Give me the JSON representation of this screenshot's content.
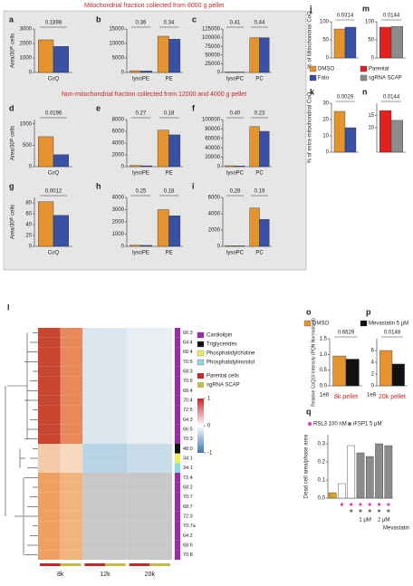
{
  "headers": {
    "mito": "Mitochondrial fraction collected from 8000 g pellet",
    "nonmito": "Non-mitochondrial fraction collected from 12000 and 4000 g pellet"
  },
  "chart_data": [
    {
      "type": "bar",
      "label": "a",
      "ylabel": "Area/30ᵗʰ cells",
      "categories": [
        "CoQ"
      ],
      "series": [
        {
          "color": "#e5932e",
          "values": [
            2250
          ]
        },
        {
          "color": "#3a50a3",
          "values": [
            1800
          ]
        }
      ],
      "ylim": [
        0,
        3000
      ],
      "yticks": [
        0,
        1000,
        2000,
        3000
      ],
      "pvalues": [
        "0.1898"
      ]
    },
    {
      "type": "bar",
      "label": "b",
      "categories": [
        "lysoPE",
        "PE"
      ],
      "series": [
        {
          "color": "#e5932e",
          "values": [
            600,
            12500
          ]
        },
        {
          "color": "#3a50a3",
          "values": [
            500,
            11500
          ]
        }
      ],
      "ylim": [
        0,
        15000
      ],
      "yticks": [
        0,
        5000,
        10000,
        15000
      ],
      "pvalues": [
        "0.36",
        "0.34"
      ]
    },
    {
      "type": "bar",
      "label": "c",
      "categories": [
        "lysoPC",
        "PC"
      ],
      "series": [
        {
          "color": "#e5932e",
          "values": [
            1500,
            100000
          ]
        },
        {
          "color": "#3a50a3",
          "values": [
            1200,
            100000
          ]
        }
      ],
      "ylim": [
        0,
        125000
      ],
      "yticks": [
        0,
        25000,
        50000,
        75000,
        100000,
        125000
      ],
      "pvalues": [
        "0.41",
        "0.44"
      ]
    },
    {
      "type": "bar",
      "label": "d",
      "ylabel": "Area/30ᵗʰ cells",
      "categories": [
        "CoQ"
      ],
      "series": [
        {
          "color": "#e5932e",
          "values": [
            700
          ]
        },
        {
          "color": "#3a50a3",
          "values": [
            280
          ]
        }
      ],
      "ylim": [
        0,
        1100
      ],
      "yticks": [
        0,
        500,
        1000
      ],
      "pvalues": [
        "0.0196"
      ]
    },
    {
      "type": "bar",
      "label": "e",
      "categories": [
        "lysoPE",
        "PE"
      ],
      "series": [
        {
          "color": "#e5932e",
          "values": [
            200,
            6200
          ]
        },
        {
          "color": "#3a50a3",
          "values": [
            150,
            5400
          ]
        }
      ],
      "ylim": [
        0,
        8000
      ],
      "yticks": [
        0,
        2000,
        4000,
        6000,
        8000
      ],
      "pvalues": [
        "0.27",
        "0.18"
      ]
    },
    {
      "type": "bar",
      "label": "f",
      "categories": [
        "lysoPC",
        "PC"
      ],
      "series": [
        {
          "color": "#e5932e",
          "values": [
            2000,
            85000
          ]
        },
        {
          "color": "#3a50a3",
          "values": [
            1500,
            75000
          ]
        }
      ],
      "ylim": [
        0,
        100000
      ],
      "yticks": [
        0,
        20000,
        40000,
        60000,
        80000,
        100000
      ],
      "pvalues": [
        "0.40",
        "0.23"
      ]
    },
    {
      "type": "bar",
      "label": "g",
      "ylabel": "Area/30ᵗʰ cells",
      "categories": [
        "CoQ"
      ],
      "series": [
        {
          "color": "#e5932e",
          "values": [
            82
          ]
        },
        {
          "color": "#3a50a3",
          "values": [
            57
          ]
        }
      ],
      "ylim": [
        0,
        90
      ],
      "yticks": [
        0,
        20,
        40,
        60,
        80
      ],
      "pvalues": [
        "0.0012"
      ]
    },
    {
      "type": "bar",
      "label": "h",
      "categories": [
        "lysoPE",
        "PE"
      ],
      "series": [
        {
          "color": "#e5932e",
          "values": [
            100,
            3000
          ]
        },
        {
          "color": "#3a50a3",
          "values": [
            80,
            2500
          ]
        }
      ],
      "ylim": [
        0,
        4000
      ],
      "yticks": [
        0,
        1000,
        2000,
        3000,
        4000
      ],
      "pvalues": [
        "0.25",
        "0.18"
      ]
    },
    {
      "type": "bar",
      "label": "i",
      "categories": [
        "lysoPC",
        "PC"
      ],
      "series": [
        {
          "color": "#e5932e",
          "values": [
            80,
            4700
          ]
        },
        {
          "color": "#3a50a3",
          "values": [
            60,
            3300
          ]
        }
      ],
      "ylim": [
        0,
        6000
      ],
      "yticks": [
        0,
        2000,
        4000,
        6000
      ],
      "pvalues": [
        "0.28",
        "0.19"
      ]
    },
    {
      "type": "bar",
      "label": "j",
      "ylabel": "% of Mitochondrial CoQ",
      "categories": [
        null
      ],
      "series": [
        {
          "name": "DMSO",
          "color": "#e5932e",
          "values": [
            80
          ]
        },
        {
          "name": "Fato",
          "color": "#3a50a3",
          "values": [
            85
          ]
        }
      ],
      "ylim": [
        0,
        100
      ],
      "yticks": [
        0,
        50,
        100
      ],
      "pvalues": [
        "0.0314"
      ]
    },
    {
      "type": "bar",
      "label": "m",
      "categories": [
        null
      ],
      "series": [
        {
          "name": "Parental",
          "color": "#e3211c",
          "values": [
            85
          ]
        },
        {
          "name": "sgRNA SCAP",
          "color": "#8c8c8c",
          "values": [
            87
          ]
        }
      ],
      "ylim": [
        0,
        100
      ],
      "yticks": [
        0,
        50,
        100
      ],
      "pvalues": [
        "0.0144"
      ]
    },
    {
      "type": "bar",
      "label": "k",
      "ylabel": "% of extra-mitochondrial CoQ",
      "categories": [
        null
      ],
      "series": [
        {
          "color": "#e5932e",
          "values": [
            25
          ]
        },
        {
          "color": "#3a50a3",
          "values": [
            15
          ]
        }
      ],
      "ylim": [
        0,
        30
      ],
      "yticks": [
        0,
        10,
        20,
        30
      ],
      "pvalues": [
        "0.0029"
      ]
    },
    {
      "type": "bar",
      "label": "n",
      "categories": [
        null
      ],
      "series": [
        {
          "color": "#e3211c",
          "values": [
            17
          ]
        },
        {
          "color": "#8c8c8c",
          "values": [
            13
          ]
        }
      ],
      "ylim": [
        0,
        20
      ],
      "yticks": [
        10,
        15
      ],
      "pvalues": [
        "0.0144"
      ]
    },
    {
      "type": "bar",
      "label": "o",
      "ylabel": "Relative CoQ10 Intensity (PQN Normalised)",
      "multiplier": "1e8",
      "xlabel": "8k pellet",
      "categories": [
        null
      ],
      "series": [
        {
          "name": "DMSO",
          "color": "#e5932e",
          "values": [
            0.95
          ]
        },
        {
          "name": "Mevastatin 5 μM",
          "color": "#111111",
          "values": [
            0.85
          ]
        }
      ],
      "ylim": [
        0,
        1.5
      ],
      "yticks": [
        {
          "value": 0,
          "label": "0.0"
        },
        0.5,
        {
          "value": 1,
          "label": "1.0"
        },
        1.5
      ],
      "pvalues": [
        "0.6629"
      ]
    },
    {
      "type": "bar",
      "label": "p",
      "multiplier": "1e8",
      "xlabel": "20k pellet",
      "categories": [
        null
      ],
      "series": [
        {
          "color": "#e5932e",
          "values": [
            6
          ]
        },
        {
          "color": "#111111",
          "values": [
            3.7
          ]
        }
      ],
      "ylim": [
        0,
        8
      ],
      "yticks": [
        0,
        2,
        4,
        6
      ],
      "pvalues": [
        "0.0148"
      ]
    },
    {
      "type": "bar",
      "label": "q",
      "ylabel": "Dead cell area/phase area",
      "categories": [
        null,
        null,
        null,
        null,
        null,
        null,
        null
      ],
      "series": [
        {
          "values": [
            0.03,
            0.08,
            0.29,
            0.25,
            0.23,
            0.3,
            0.29
          ],
          "colors": [
            "#d9a020",
            "#ffffff",
            "#ffffff",
            "#8c8c8c",
            "#8c8c8c",
            "#8c8c8c",
            "#8c8c8c"
          ]
        }
      ],
      "ylim": [
        0,
        0.35
      ],
      "yticks": [
        {
          "value": 0,
          "label": "0.0"
        },
        0.1,
        0.2,
        0.3
      ],
      "treatments": [
        "RSL3 100 nM",
        "iFSP1 5 μM"
      ],
      "group_labels": [
        "1 μM",
        "2 μM"
      ],
      "xlabel": "Mevastatin"
    },
    {
      "type": "heatmap",
      "label": "l",
      "rows": [
        "66:3",
        "64:4",
        "66:4",
        "70:5",
        "68:3",
        "70:6",
        "68:4",
        "70:4",
        "72:5",
        "64:3",
        "66:5",
        "70:3",
        "48:0",
        "34:1",
        "34:1",
        "72:4",
        "68:2",
        "70:7",
        "68:7",
        "72:3",
        "70:7a",
        "64:2",
        "68:6",
        "70:8"
      ],
      "row_groups": [
        {
          "name": "Cardiolipin",
          "color": "#9c27b0"
        },
        {
          "name": "Triglycerides",
          "color": "#111111"
        },
        {
          "name": "Phosphatidylcholine",
          "color": "#f0ec5a"
        },
        {
          "name": "Phosphatidylinositol",
          "color": "#86dbe6"
        }
      ],
      "column_groups": [
        {
          "name": "Parental cells",
          "color": "#c62828"
        },
        {
          "name": "sgRNA SCAP",
          "color": "#c4bc48"
        }
      ],
      "columns": [
        "8k",
        "12k",
        "20k"
      ],
      "colorbar_ticks": [
        1,
        0,
        -1
      ]
    }
  ]
}
